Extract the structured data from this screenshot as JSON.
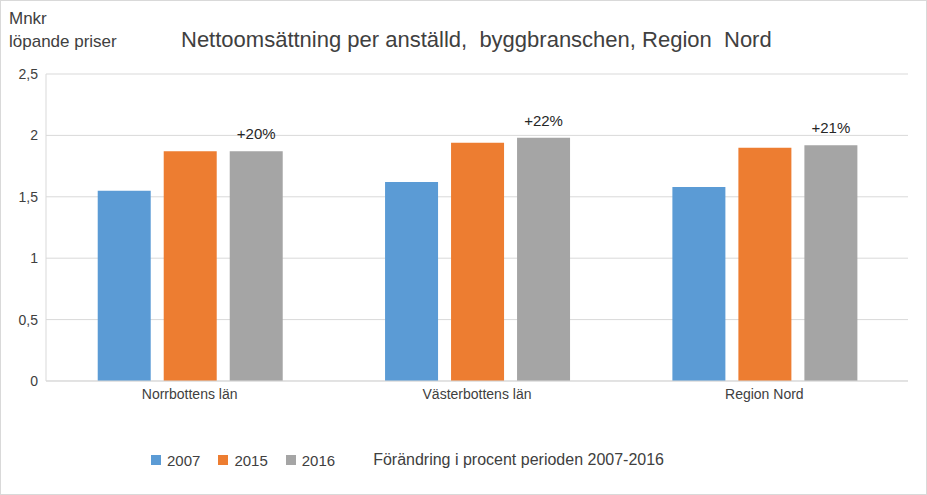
{
  "chart_data": {
    "type": "bar",
    "title": "Nettoomsättning per anställd,  byggbranschen, Region  Nord",
    "ylabel": [
      "Mnkr",
      "löpande priser"
    ],
    "subtitle": "Förändring i procent perioden 2007-2016",
    "categories": [
      "Norrbottens län",
      "Västerbottens  län",
      "Region Nord"
    ],
    "series": [
      {
        "name": "2007",
        "color": "#5b9bd5",
        "values": [
          1.55,
          1.62,
          1.58
        ]
      },
      {
        "name": "2015",
        "color": "#ed7d31",
        "values": [
          1.87,
          1.94,
          1.9
        ]
      },
      {
        "name": "2016",
        "color": "#a5a5a5",
        "values": [
          1.87,
          1.98,
          1.92
        ]
      }
    ],
    "annotations": [
      {
        "category": "Norrbottens län",
        "text": "+20%"
      },
      {
        "category": "Västerbottens  län",
        "text": "+22%"
      },
      {
        "category": "Region Nord",
        "text": "+21%"
      }
    ],
    "ylim": [
      0,
      2.5
    ],
    "yticks": [
      0,
      {
        "value": 0.5,
        "label": "0,5"
      },
      1,
      {
        "value": 1.5,
        "label": "1,5"
      },
      2,
      {
        "value": 2.5,
        "label": "2,5"
      }
    ],
    "grid": true,
    "legend": "bottom"
  }
}
